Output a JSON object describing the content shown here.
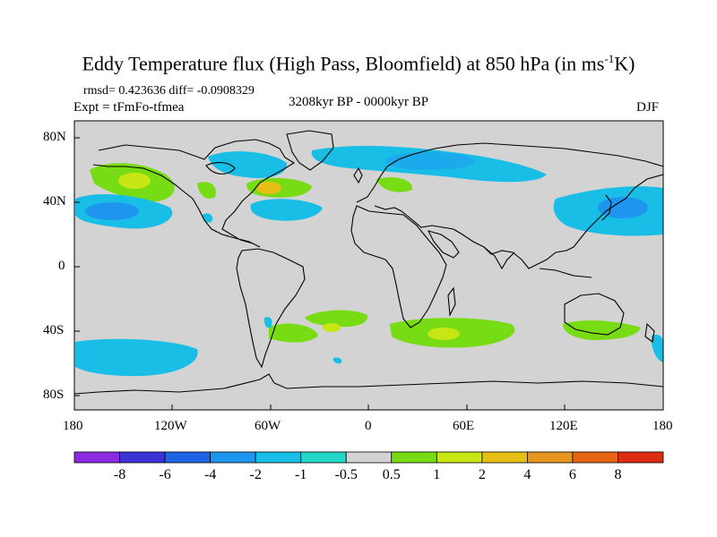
{
  "title": {
    "main": "Eddy Temperature flux (High Pass, Bloomfield) at 850 hPa (in ms",
    "sup": "-1",
    "tail": "K)"
  },
  "stats": "rmsd= 0.423636 diff= -0.0908329",
  "experiment": "Expt = tFmFo-tfmea",
  "period": "3208kyr BP - 0000kyr BP",
  "season": "DJF",
  "axes": {
    "lat_labels": [
      "80N",
      "40N",
      "0",
      "40S",
      "80S"
    ],
    "lon_labels": [
      "180",
      "120W",
      "60W",
      "0",
      "60E",
      "120E",
      "180"
    ]
  },
  "colorbar": {
    "labels": [
      "-8",
      "-6",
      "-4",
      "-2",
      "-1",
      "-0.5",
      "0.5",
      "1",
      "2",
      "4",
      "6",
      "8"
    ],
    "colors": [
      "#8a2be2",
      "#3c32d8",
      "#1e64e6",
      "#1e96f0",
      "#19bee6",
      "#23d7c8",
      "#d3d3d3",
      "#78dc14",
      "#c8e614",
      "#e6be14",
      "#e6961e",
      "#e66414",
      "#dc2d14"
    ]
  },
  "colors": {
    "land_background": "#d3d3d3",
    "coastline": "#000000"
  }
}
